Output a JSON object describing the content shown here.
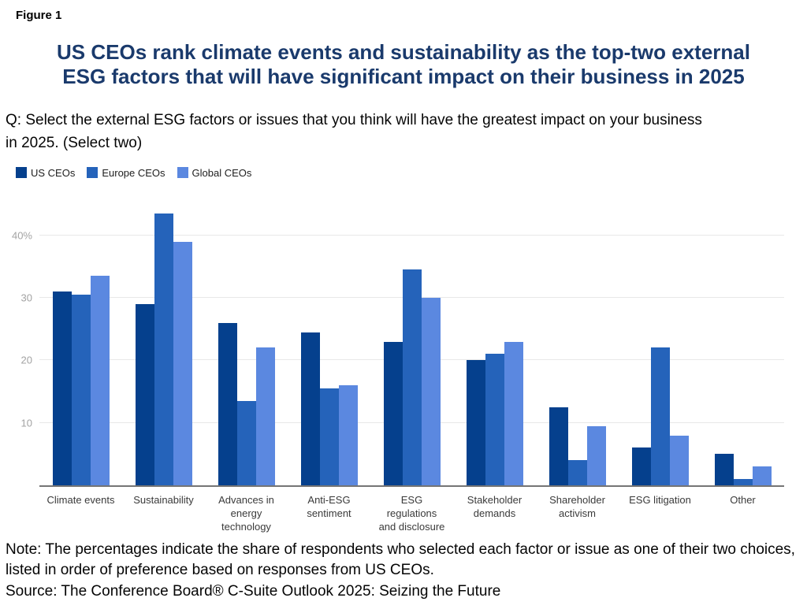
{
  "figure_label": "Figure 1",
  "title": "US CEOs rank climate events and sustainability as the top-two external\nESG factors that will have significant impact on their business in 2025",
  "question": "Q: Select the external ESG factors or issues that you think will have the greatest impact on your business\nin 2025. (Select two)",
  "note": "Note: The percentages indicate the share of respondents who selected each factor or issue as one of their two choices,\nlisted in order of preference based on responses from US CEOs.",
  "source": "Source: The Conference Board® C-Suite Outlook 2025: Seizing the Future",
  "colors": {
    "title_text": "#1a3a6c",
    "us_ceos": "#05408d",
    "europe_ceos": "#2563ba",
    "global_ceos": "#5b88e0",
    "gridline": "#e8e8e8",
    "axis_line": "#757575",
    "axis_label": "#a3a3a3",
    "category_label": "#3a3a3a"
  },
  "chart_data": {
    "type": "bar",
    "title": "US CEOs rank climate events and sustainability as the top-two external ESG factors that will have significant impact on their business in 2025",
    "categories": [
      "Climate events",
      "Sustainability",
      "Advances in\nenergy\ntechnology",
      "Anti-ESG\nsentiment",
      "ESG\nregulations\nand disclosure",
      "Stakeholder\ndemands",
      "Shareholder\nactivism",
      "ESG litigation",
      "Other"
    ],
    "series": [
      {
        "name": "US CEOs",
        "color": "#05408d",
        "values": [
          31,
          29,
          26,
          24.5,
          23,
          20,
          12.5,
          6,
          5
        ]
      },
      {
        "name": "Europe CEOs",
        "color": "#2563ba",
        "values": [
          30.5,
          43.5,
          13.5,
          15.5,
          34.5,
          21,
          4,
          22,
          1
        ]
      },
      {
        "name": "Global CEOs",
        "color": "#5b88e0",
        "values": [
          33.5,
          39,
          22,
          16,
          30,
          23,
          9.5,
          8,
          3
        ]
      }
    ],
    "xlabel": "",
    "ylabel": "",
    "unit": "%",
    "ylim": [
      0,
      46
    ],
    "yticks": [
      {
        "value": 10,
        "label": "10"
      },
      {
        "value": 20,
        "label": "20"
      },
      {
        "value": 30,
        "label": "30"
      },
      {
        "value": 40,
        "label": "40%"
      }
    ],
    "grid": true,
    "legend_position": "top-left"
  }
}
